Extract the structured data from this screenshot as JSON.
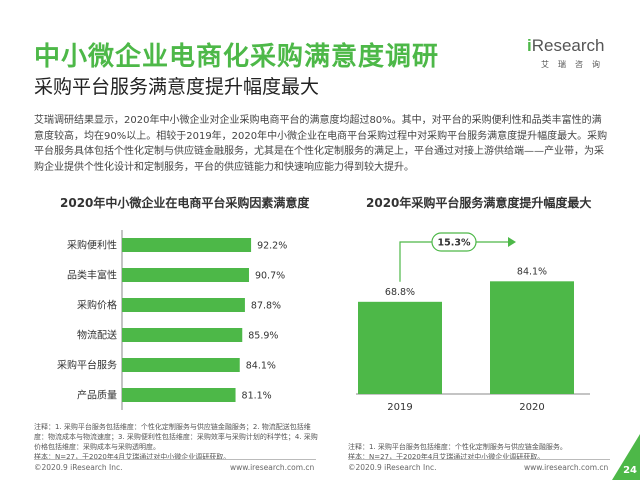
{
  "title": "中小微企业电商化采购满意度调研",
  "subtitle": "采购平台服务满意度提升幅度最大",
  "logo": {
    "brand_prefix": "i",
    "brand_name": "Research",
    "brand_sub": "艾瑞咨询"
  },
  "body_text": "艾瑞调研结果显示，2020年中小微企业对企业采购电商平台的满意度均超过80%。其中，对平台的采购便利性和品类丰富性的满意度较高，均在90%以上。相较于2019年，2020年中小微企业在电商平台采购过程中对采购平台服务满意度提升幅度最大。采购平台服务具体包括个性化定制与供应链金融服务，尤其是在个性化定制服务的满足上，平台通过对接上游供给端——产业带，为采购企业提供个性化设计和定制服务，平台的供应链能力和快速响应能力得到较大提升。",
  "colors": {
    "accent": "#4db848",
    "axis": "#888888",
    "text": "#333333"
  },
  "chart_data": [
    {
      "type": "bar",
      "orientation": "horizontal",
      "title": "2020年中小微企业在电商平台采购因素满意度",
      "categories": [
        "采购便利性",
        "品类丰富性",
        "采购价格",
        "物流配送",
        "采购平台服务",
        "产品质量"
      ],
      "values": [
        92.2,
        90.7,
        87.8,
        85.9,
        84.1,
        81.1
      ],
      "value_labels": [
        "92.2%",
        "90.7%",
        "87.8%",
        "85.9%",
        "84.1%",
        "81.1%"
      ],
      "xlim": [
        0,
        100
      ],
      "grid": false
    },
    {
      "type": "bar",
      "orientation": "vertical",
      "title": "2020年采购平台服务满意度提升幅度最大",
      "categories": [
        "2019",
        "2020"
      ],
      "values": [
        68.8,
        84.1
      ],
      "value_labels": [
        "68.8%",
        "84.1%"
      ],
      "ylim": [
        0,
        100
      ],
      "annotation": "15.3%",
      "grid": false
    }
  ],
  "notes": {
    "left": "注释：1. 采购平台服务包括维度：个性化定制服务与供应链金融服务；2. 物流配送包括维度：物流成本与物流速度；3. 采购便利性包括维度：采购效率与采购计划的科学性；4. 采购价格包括维度：采购成本与采购透明度。",
    "left_sample": "样本：N=27，于2020年4月艾瑞通过对中小微企业调研获取。",
    "right": "注释：1. 采购平台服务包括维度：个性化定制服务与供应链金融服务。",
    "right_sample": "样本：N=27，于2020年4月艾瑞通过对中小微企业调研获取。"
  },
  "footer": {
    "copyright_left": "©2020.9 iResearch Inc.",
    "url_left": "www.iresearch.com.cn",
    "copyright_right": "©2020.9 iResearch Inc.",
    "url_right": "www.iresearch.com.cn"
  },
  "page_number": "24"
}
